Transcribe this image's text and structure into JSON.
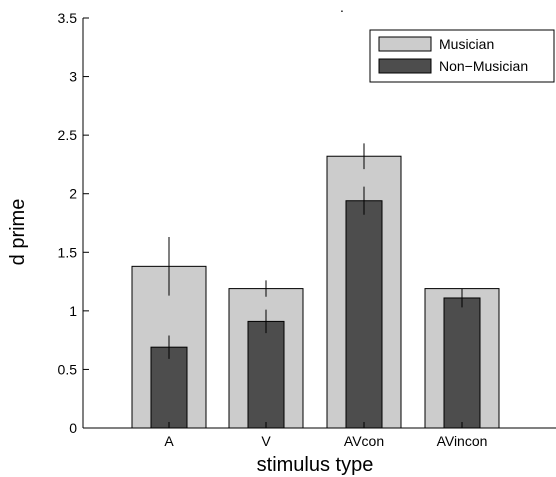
{
  "chart_data": {
    "type": "bar",
    "title": ".",
    "xlabel": "stimulus type",
    "ylabel": "d prime",
    "categories": [
      "A",
      "V",
      "AVcon",
      "AVincon"
    ],
    "ylim": [
      0,
      3.5
    ],
    "yticks": [
      "0",
      "0.5",
      "1",
      "1.5",
      "2",
      "2.5",
      "3",
      "3.5"
    ],
    "grid": false,
    "legend_position": "top-right",
    "series": [
      {
        "name": "Musician",
        "color": "#cccccc",
        "values": [
          1.38,
          1.19,
          2.32,
          1.19
        ],
        "error": [
          0.25,
          0.07,
          0.11,
          0.0
        ]
      },
      {
        "name": "Non−Musician",
        "color": "#4d4d4d",
        "values": [
          0.69,
          0.91,
          1.94,
          1.11
        ],
        "error": [
          0.1,
          0.1,
          0.12,
          0.08
        ]
      }
    ]
  }
}
